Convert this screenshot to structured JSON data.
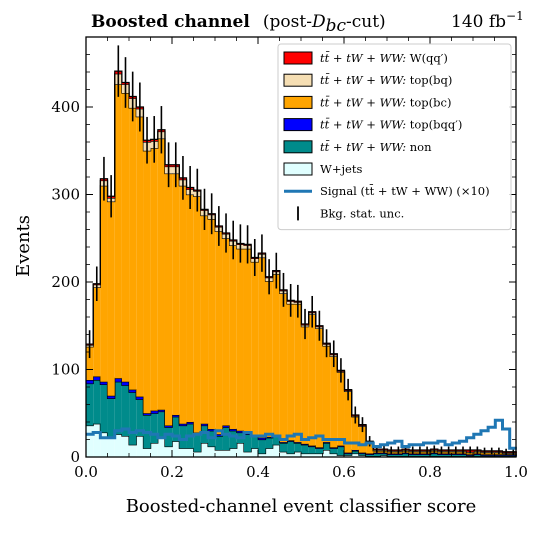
{
  "chart_data": {
    "type": "bar",
    "stacked": true,
    "histogram": true,
    "title": {
      "bold": "Boosted channel",
      "cut_prefix": "(post-",
      "cut_symbol": "D",
      "cut_subscript": "bc",
      "cut_suffix": "-cut)",
      "lumi": "140 fb",
      "lumi_exponent": "−1"
    },
    "xlabel": "Boosted-channel event classifier score",
    "ylabel": "Events",
    "xlim": [
      0,
      1
    ],
    "ylim": [
      0,
      480
    ],
    "bin_width": 0.0167,
    "xticks": [
      "0.0",
      "0.2",
      "0.4",
      "0.6",
      "0.8",
      "1.0"
    ],
    "yticks": [
      "0",
      "100",
      "200",
      "300",
      "400"
    ],
    "bin_edges_start": 0.0,
    "legend_position": "top-right",
    "series": [
      {
        "key": "wjets",
        "color": "#e0ffff",
        "values": [
          36,
          38,
          28,
          22,
          26,
          24,
          14,
          24,
          10,
          16,
          22,
          12,
          18,
          10,
          10,
          6,
          16,
          12,
          8,
          8,
          10,
          16,
          6,
          10,
          4,
          10,
          14,
          6,
          4,
          6,
          4,
          4,
          4,
          8,
          4,
          2,
          2,
          4,
          2,
          1,
          1,
          2,
          1,
          1,
          1,
          1,
          1,
          1,
          1,
          1,
          1,
          1,
          1,
          1,
          1,
          1,
          1,
          1,
          1,
          1
        ]
      },
      {
        "key": "non",
        "color": "#008b8b",
        "values": [
          48,
          50,
          55,
          45,
          60,
          58,
          60,
          42,
          38,
          34,
          30,
          22,
          28,
          26,
          28,
          20,
          20,
          18,
          16,
          26,
          20,
          12,
          20,
          14,
          16,
          12,
          10,
          10,
          14,
          10,
          10,
          8,
          6,
          8,
          6,
          10,
          2,
          3,
          2,
          2,
          3,
          2,
          2,
          2,
          3,
          2,
          2,
          2,
          3,
          2,
          2,
          2,
          2,
          1,
          2,
          1,
          1,
          1,
          1,
          1
        ]
      },
      {
        "key": "bqq",
        "color": "#0000ff",
        "values": [
          4,
          4,
          3,
          3,
          4,
          4,
          3,
          3,
          2,
          3,
          2,
          2,
          2,
          2,
          2,
          2,
          2,
          2,
          2,
          2,
          2,
          2,
          2,
          1,
          2,
          1,
          1,
          1,
          1,
          1,
          1,
          1,
          1,
          1,
          1,
          1,
          1,
          1,
          1,
          1,
          1,
          1,
          1,
          1,
          1,
          1,
          1,
          1,
          1,
          1,
          1,
          1,
          1,
          1,
          1,
          1,
          1,
          1,
          1,
          1
        ]
      },
      {
        "key": "bc",
        "color": "#ffa500",
        "values": [
          38,
          102,
          224,
          222,
          336,
          330,
          322,
          320,
          300,
          300,
          310,
          288,
          276,
          272,
          260,
          270,
          238,
          240,
          232,
          214,
          210,
          208,
          210,
          198,
          206,
          178,
          184,
          170,
          156,
          158,
          134,
          150,
          136,
          110,
          104,
          84,
          70,
          38,
          30,
          12,
          2,
          2,
          2,
          2,
          2,
          2,
          2,
          2,
          2,
          2,
          2,
          2,
          2,
          2,
          2,
          2,
          2,
          2,
          1,
          1
        ]
      },
      {
        "key": "bq",
        "color": "#f5deb3",
        "values": [
          2,
          3,
          6,
          4,
          12,
          10,
          11,
          9,
          10,
          8,
          8,
          8,
          8,
          7,
          6,
          6,
          6,
          5,
          5,
          5,
          5,
          5,
          4,
          4,
          4,
          4,
          3,
          3,
          3,
          2,
          2,
          2,
          2,
          2,
          2,
          1,
          1,
          1,
          1,
          1,
          1,
          1,
          1,
          1,
          1,
          1,
          1,
          1,
          1,
          1,
          1,
          1,
          1,
          1,
          1,
          1,
          1,
          1,
          1,
          1
        ]
      },
      {
        "key": "wqq",
        "color": "#ff0000",
        "values": [
          1,
          1,
          2,
          2,
          3,
          2,
          2,
          2,
          2,
          2,
          2,
          2,
          2,
          2,
          2,
          1,
          1,
          1,
          1,
          1,
          1,
          1,
          1,
          1,
          1,
          1,
          1,
          1,
          1,
          1,
          1,
          1,
          1,
          1,
          1,
          1,
          1,
          1,
          1,
          1,
          1,
          1,
          1,
          1,
          1,
          1,
          1,
          1,
          1,
          1,
          1,
          1,
          1,
          2,
          1,
          1,
          1,
          1,
          1,
          1
        ]
      }
    ],
    "signal": {
      "key": "signal",
      "color": "#1f77b4",
      "scale": 10,
      "values": [
        26,
        28,
        22,
        22,
        30,
        32,
        28,
        30,
        28,
        26,
        22,
        26,
        24,
        20,
        24,
        26,
        28,
        22,
        30,
        26,
        24,
        22,
        28,
        24,
        24,
        26,
        24,
        20,
        24,
        26,
        20,
        22,
        24,
        20,
        20,
        20,
        16,
        16,
        14,
        16,
        12,
        14,
        16,
        18,
        12,
        14,
        14,
        16,
        16,
        18,
        14,
        16,
        18,
        22,
        26,
        30,
        34,
        42,
        32,
        10
      ]
    },
    "stat_unc_relative": 0.05,
    "legend": [
      {
        "key": "wqq",
        "type": "patch",
        "color": "#ff0000",
        "prefix": "tt̄ + tW + WW: ",
        "label": "W(qq′)"
      },
      {
        "key": "bq",
        "type": "patch",
        "color": "#f5deb3",
        "prefix": "tt̄ + tW + WW: ",
        "label": "top(bq)"
      },
      {
        "key": "bc",
        "type": "patch",
        "color": "#ffa500",
        "prefix": "tt̄ + tW + WW: ",
        "label": "top(bc)"
      },
      {
        "key": "bqq",
        "type": "patch",
        "color": "#0000ff",
        "prefix": "tt̄ + tW + WW: ",
        "label": "top(bqq′)"
      },
      {
        "key": "non",
        "type": "patch",
        "color": "#008b8b",
        "prefix": "tt̄ + tW + WW: ",
        "label": "non"
      },
      {
        "key": "wjets",
        "type": "patch",
        "color": "#e0ffff",
        "prefix": "",
        "label": "W+jets"
      },
      {
        "key": "signal",
        "type": "line",
        "color": "#1f77b4",
        "prefix": "",
        "label": "Signal (tt̄ + tW + WW) (×10)"
      },
      {
        "key": "unc",
        "type": "errbar",
        "color": "#000000",
        "prefix": "",
        "label": "Bkg. stat. unc."
      }
    ]
  }
}
